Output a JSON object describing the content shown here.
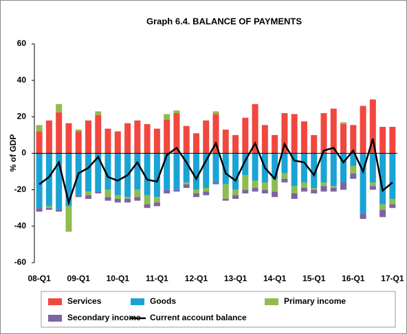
{
  "chart_data": {
    "type": "bar",
    "stacked": true,
    "title": "Graph 6.4. BALANCE OF PAYMENTS",
    "y_label": "% of GDP",
    "categories": [
      "08-Q1",
      null,
      null,
      null,
      "09-Q1",
      null,
      null,
      null,
      "10-Q1",
      null,
      null,
      null,
      "11-Q1",
      null,
      null,
      null,
      "12-Q1",
      null,
      null,
      null,
      "13-Q1",
      null,
      null,
      null,
      "14-Q1",
      null,
      null,
      null,
      "15-Q1",
      null,
      null,
      null,
      "16-Q1",
      null,
      null,
      null,
      "17-Q1"
    ],
    "ylim": [
      -60,
      60
    ],
    "yticks": [
      -60,
      -40,
      -20,
      0,
      20,
      40,
      60
    ],
    "grid": false,
    "series": [
      {
        "name": "Services",
        "color": "#f2473f",
        "values": [
          12,
          18,
          22.5,
          16.5,
          12,
          18,
          21,
          13.5,
          12,
          16.5,
          18,
          16,
          13.5,
          18.5,
          22,
          15,
          11,
          18,
          21.5,
          13,
          10,
          19.5,
          27,
          15.5,
          10,
          22,
          21.5,
          17.5,
          10,
          22,
          24.5,
          16,
          15.5,
          26,
          29.5,
          14.5,
          14.5
        ]
      },
      {
        "name": "Goods",
        "color": "#1aa3d4",
        "values": [
          -30,
          -29,
          -31,
          -29,
          -23,
          -21,
          -21,
          -20,
          -23,
          -24,
          -20,
          -23,
          -24,
          -20,
          -20,
          -16,
          -20,
          -19,
          -16,
          -17,
          -20,
          -12,
          -15,
          -16,
          -14,
          -11,
          -18,
          -16,
          -19,
          -16,
          -18,
          -16,
          -7,
          -33,
          -16,
          -28,
          -25
        ]
      },
      {
        "name": "Primary income",
        "color": "#8fbc4f",
        "values": [
          3.5,
          -1,
          4.5,
          -14,
          1,
          -2,
          2,
          -4,
          -2,
          -1,
          -4,
          -5,
          -3,
          3,
          1.5,
          -1,
          -2,
          -2,
          1.5,
          -8,
          -3,
          -8,
          -4,
          -4,
          -7,
          -3,
          -4,
          -3,
          -1,
          -2,
          -1,
          1,
          -4,
          0,
          -2,
          -3,
          -3
        ]
      },
      {
        "name": "Secondary income",
        "color": "#7f62a3",
        "values": [
          -2,
          -1,
          -1,
          0,
          -1,
          -2,
          -1,
          -2,
          -2,
          -2,
          -2,
          -2,
          -2,
          -2,
          -1,
          -2,
          -2,
          -2,
          -1,
          -1,
          -2,
          -2,
          -2,
          -2,
          -3,
          -2,
          -3,
          -2,
          -2,
          -3,
          -2,
          -4,
          -3,
          -3,
          -2,
          -4,
          -2
        ]
      },
      {
        "name": "Current account balance",
        "type": "line",
        "color": "#000000",
        "values": [
          -17,
          -13,
          -5,
          -27,
          -11,
          -8,
          -2,
          -13,
          -15,
          -12,
          -5,
          -14.5,
          -15.5,
          -1,
          3,
          -5,
          -14,
          -4,
          5.5,
          -11,
          -15,
          -4,
          5.5,
          -8,
          -14,
          5,
          -4,
          -5,
          -12,
          1.5,
          3,
          -5,
          1.5,
          -10,
          8,
          -20.5,
          -16
        ]
      }
    ]
  }
}
